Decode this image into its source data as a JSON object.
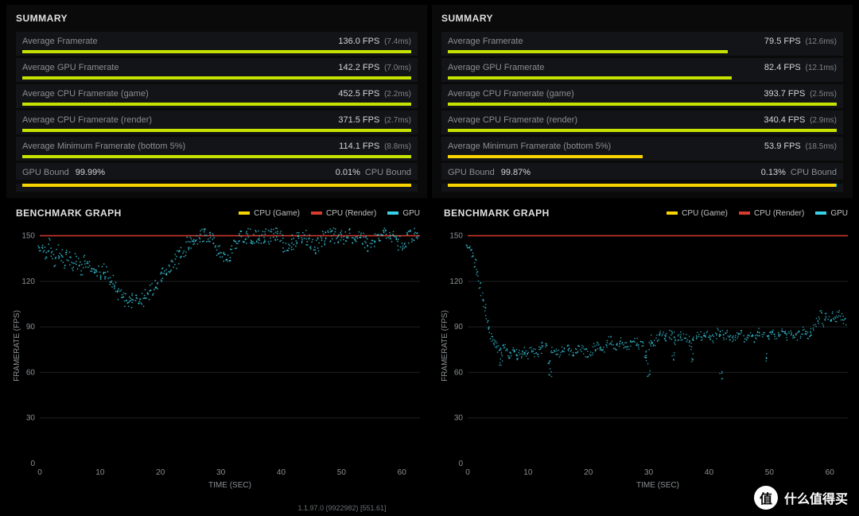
{
  "colors": {
    "background": "#000000",
    "row_bg": "#121417",
    "text_primary": "#d5d5d5",
    "text_muted": "#8a8f93",
    "bar_green": "#c6e200",
    "bar_yellow": "#f8d500",
    "bar_cyan": "#39d1e5",
    "bar_red": "#d63b2e",
    "grid": "#1c2024"
  },
  "section_titles": {
    "summary": "SUMMARY",
    "graph": "BENCHMARK GRAPH"
  },
  "legend": {
    "cpu_game": "CPU (Game)",
    "cpu_render": "CPU (Render)",
    "gpu": "GPU"
  },
  "axes": {
    "x_label": "TIME (SEC)",
    "y_label": "FRAMERATE (FPS)",
    "x_ticks": [
      0,
      10,
      20,
      30,
      40,
      50,
      60
    ],
    "y_ticks": [
      30,
      60,
      90,
      120,
      150
    ],
    "xlim": [
      0,
      63
    ],
    "ylim": [
      0,
      155
    ]
  },
  "left": {
    "metrics": [
      {
        "label": "Average Framerate",
        "value": "136.0 FPS",
        "sub": "(7.4ms)",
        "color": "#c6e200",
        "pct": 100
      },
      {
        "label": "Average GPU Framerate",
        "value": "142.2 FPS",
        "sub": "(7.0ms)",
        "color": "#c6e200",
        "pct": 100
      },
      {
        "label": "Average CPU Framerate (game)",
        "value": "452.5 FPS",
        "sub": "(2.2ms)",
        "color": "#c6e200",
        "pct": 100
      },
      {
        "label": "Average CPU Framerate (render)",
        "value": "371.5 FPS",
        "sub": "(2.7ms)",
        "color": "#c6e200",
        "pct": 100
      },
      {
        "label": "Average Minimum Framerate (bottom 5%)",
        "value": "114.1 FPS",
        "sub": "(8.8ms)",
        "color": "#c6e200",
        "pct": 100
      }
    ],
    "bound": {
      "left_label": "GPU Bound",
      "left_val": "99.99%",
      "right_val": "0.01%",
      "right_label": "CPU Bound",
      "gpu_color": "#f8d500",
      "gpu_pct": 99.99,
      "cpu_color": "#39d1e5",
      "cpu_pct": 0.01
    },
    "chart": {
      "cpu_game_color": "#f8d500",
      "cpu_render_color": "#d63b2e",
      "cpu_render_y": 150,
      "gpu_color": "#39d1e5",
      "gpu_series": [
        [
          0,
          145
        ],
        [
          0.5,
          142
        ],
        [
          1,
          138
        ],
        [
          1.5,
          144
        ],
        [
          2,
          139
        ],
        [
          2.5,
          134
        ],
        [
          3,
          140
        ],
        [
          3.5,
          136
        ],
        [
          4,
          132
        ],
        [
          4.5,
          137
        ],
        [
          5,
          135
        ],
        [
          5.5,
          130
        ],
        [
          6,
          134
        ],
        [
          6.5,
          131
        ],
        [
          7,
          128
        ],
        [
          7.5,
          133
        ],
        [
          8,
          129
        ],
        [
          8.5,
          126
        ],
        [
          9,
          130
        ],
        [
          9.5,
          127
        ],
        [
          10,
          124
        ],
        [
          10.5,
          128
        ],
        [
          11,
          126
        ],
        [
          11.5,
          122
        ],
        [
          12,
          120
        ],
        [
          12.5,
          117
        ],
        [
          13,
          113
        ],
        [
          13.5,
          110
        ],
        [
          14,
          108
        ],
        [
          14.5,
          106
        ],
        [
          15,
          105
        ],
        [
          15.5,
          107
        ],
        [
          16,
          106
        ],
        [
          16.5,
          109
        ],
        [
          17,
          108
        ],
        [
          17.5,
          112
        ],
        [
          18,
          110
        ],
        [
          18.5,
          114
        ],
        [
          19,
          116
        ],
        [
          19.5,
          119
        ],
        [
          20,
          121
        ],
        [
          20.5,
          124
        ],
        [
          21,
          126
        ],
        [
          21.5,
          128
        ],
        [
          22,
          131
        ],
        [
          22.5,
          133
        ],
        [
          23,
          136
        ],
        [
          23.5,
          139
        ],
        [
          24,
          141
        ],
        [
          24.5,
          144
        ],
        [
          25,
          146
        ],
        [
          25.5,
          148
        ],
        [
          26,
          149
        ],
        [
          26.5,
          150
        ],
        [
          27,
          150
        ],
        [
          27.5,
          150
        ],
        [
          28,
          148
        ],
        [
          28.5,
          149
        ],
        [
          29,
          144
        ],
        [
          29.5,
          142
        ],
        [
          30,
          139
        ],
        [
          30.5,
          136
        ],
        [
          31,
          135
        ],
        [
          31.5,
          137
        ],
        [
          32,
          143
        ],
        [
          32.5,
          146
        ],
        [
          33,
          148
        ],
        [
          33.5,
          150
        ],
        [
          34,
          150
        ],
        [
          34.5,
          150
        ],
        [
          35,
          150
        ],
        [
          35.5,
          149
        ],
        [
          36,
          150
        ],
        [
          36.5,
          148
        ],
        [
          37,
          150
        ],
        [
          37.5,
          150
        ],
        [
          38,
          149
        ],
        [
          38.5,
          150
        ],
        [
          39,
          150
        ],
        [
          39.5,
          150
        ],
        [
          40,
          148
        ],
        [
          40.5,
          144
        ],
        [
          41,
          141
        ],
        [
          41.5,
          143
        ],
        [
          42,
          146
        ],
        [
          42.5,
          148
        ],
        [
          43,
          150
        ],
        [
          43.5,
          150
        ],
        [
          44,
          149
        ],
        [
          44.5,
          146
        ],
        [
          45,
          144
        ],
        [
          45.5,
          142
        ],
        [
          46,
          144
        ],
        [
          46.5,
          146
        ],
        [
          47,
          148
        ],
        [
          47.5,
          149
        ],
        [
          48,
          150
        ],
        [
          48.5,
          150
        ],
        [
          49,
          150
        ],
        [
          49.5,
          150
        ],
        [
          50,
          150
        ],
        [
          50.5,
          149
        ],
        [
          51,
          150
        ],
        [
          51.5,
          150
        ],
        [
          52,
          150
        ],
        [
          52.5,
          150
        ],
        [
          53,
          149
        ],
        [
          53.5,
          148
        ],
        [
          54,
          145
        ],
        [
          54.5,
          143
        ],
        [
          55,
          145
        ],
        [
          55.5,
          147
        ],
        [
          56,
          149
        ],
        [
          56.5,
          150
        ],
        [
          57,
          150
        ],
        [
          57.5,
          150
        ],
        [
          58,
          150
        ],
        [
          58.5,
          150
        ],
        [
          59,
          148
        ],
        [
          59.5,
          145
        ],
        [
          60,
          143
        ],
        [
          60.5,
          146
        ],
        [
          61,
          148
        ],
        [
          61.5,
          150
        ],
        [
          62,
          150
        ],
        [
          62.5,
          150
        ]
      ],
      "point_jitter": 5,
      "point_radius": 0.9
    }
  },
  "right": {
    "metrics": [
      {
        "label": "Average Framerate",
        "value": "79.5 FPS",
        "sub": "(12.6ms)",
        "color": "#c6e200",
        "pct": 72
      },
      {
        "label": "Average GPU Framerate",
        "value": "82.4 FPS",
        "sub": "(12.1ms)",
        "color": "#c6e200",
        "pct": 73
      },
      {
        "label": "Average CPU Framerate (game)",
        "value": "393.7 FPS",
        "sub": "(2.5ms)",
        "color": "#c6e200",
        "pct": 100
      },
      {
        "label": "Average CPU Framerate (render)",
        "value": "340.4 FPS",
        "sub": "(2.9ms)",
        "color": "#c6e200",
        "pct": 100
      },
      {
        "label": "Average Minimum Framerate (bottom 5%)",
        "value": "53.9 FPS",
        "sub": "(18.5ms)",
        "color": "#f8d500",
        "pct": 50
      }
    ],
    "bound": {
      "left_label": "GPU Bound",
      "left_val": "99.87%",
      "right_val": "0.13%",
      "right_label": "CPU Bound",
      "gpu_color": "#f8d500",
      "gpu_pct": 99.87,
      "cpu_color": "#39d1e5",
      "cpu_pct": 0.13
    },
    "chart": {
      "cpu_game_color": "#f8d500",
      "cpu_render_color": "#d63b2e",
      "cpu_render_y": 150,
      "gpu_color": "#39d1e5",
      "gpu_series": [
        [
          0,
          145
        ],
        [
          0.4,
          142
        ],
        [
          0.8,
          138
        ],
        [
          1.2,
          132
        ],
        [
          1.6,
          126
        ],
        [
          2,
          118
        ],
        [
          2.4,
          110
        ],
        [
          2.8,
          102
        ],
        [
          3.2,
          95
        ],
        [
          3.6,
          88
        ],
        [
          4,
          83
        ],
        [
          4.4,
          80
        ],
        [
          4.8,
          78
        ],
        [
          5.2,
          75
        ],
        [
          5.5,
          67
        ],
        [
          5.6,
          73
        ],
        [
          6,
          76
        ],
        [
          6.4,
          74
        ],
        [
          6.8,
          72
        ],
        [
          7.2,
          73
        ],
        [
          7.6,
          75
        ],
        [
          8,
          73
        ],
        [
          8.4,
          71
        ],
        [
          8.8,
          72
        ],
        [
          9.2,
          74
        ],
        [
          9.6,
          73
        ],
        [
          10,
          72
        ],
        [
          10.5,
          74
        ],
        [
          11,
          73
        ],
        [
          11.5,
          72
        ],
        [
          12,
          74
        ],
        [
          12.5,
          77
        ],
        [
          13,
          76
        ],
        [
          13.5,
          68
        ],
        [
          13.7,
          60
        ],
        [
          14,
          75
        ],
        [
          14.5,
          73
        ],
        [
          15,
          72
        ],
        [
          15.5,
          74
        ],
        [
          16,
          76
        ],
        [
          16.5,
          75
        ],
        [
          17,
          73
        ],
        [
          17.5,
          72
        ],
        [
          18,
          74
        ],
        [
          18.5,
          76
        ],
        [
          19,
          75
        ],
        [
          19.5,
          73
        ],
        [
          20,
          72
        ],
        [
          20.5,
          74
        ],
        [
          21,
          76
        ],
        [
          21.5,
          78
        ],
        [
          22,
          77
        ],
        [
          22.5,
          76
        ],
        [
          23,
          79
        ],
        [
          23.5,
          81
        ],
        [
          24,
          78
        ],
        [
          24.5,
          76
        ],
        [
          25,
          78
        ],
        [
          25.5,
          80
        ],
        [
          26,
          79
        ],
        [
          26.5,
          77
        ],
        [
          27,
          79
        ],
        [
          27.5,
          81
        ],
        [
          28,
          80
        ],
        [
          28.5,
          78
        ],
        [
          29,
          80
        ],
        [
          29.5,
          72
        ],
        [
          29.7,
          68
        ],
        [
          30,
          60
        ],
        [
          30.3,
          78
        ],
        [
          30.5,
          82
        ],
        [
          31,
          80
        ],
        [
          31.5,
          83
        ],
        [
          32,
          86
        ],
        [
          32.5,
          85
        ],
        [
          33,
          83
        ],
        [
          33.5,
          85
        ],
        [
          34,
          84
        ],
        [
          34.1,
          70
        ],
        [
          34.5,
          80
        ],
        [
          35,
          82
        ],
        [
          35.5,
          84
        ],
        [
          36,
          83
        ],
        [
          36.5,
          81
        ],
        [
          37,
          78
        ],
        [
          37.2,
          70
        ],
        [
          37.5,
          82
        ],
        [
          38,
          85
        ],
        [
          38.5,
          84
        ],
        [
          39,
          83
        ],
        [
          39.5,
          85
        ],
        [
          40,
          84
        ],
        [
          40.5,
          82
        ],
        [
          41,
          84
        ],
        [
          41.5,
          86
        ],
        [
          42,
          85
        ],
        [
          42,
          58
        ],
        [
          42.5,
          83
        ],
        [
          43,
          85
        ],
        [
          43.5,
          84
        ],
        [
          44,
          82
        ],
        [
          44.5,
          84
        ],
        [
          45,
          86
        ],
        [
          45.5,
          85
        ],
        [
          46,
          83
        ],
        [
          46.5,
          85
        ],
        [
          47,
          84
        ],
        [
          47.5,
          82
        ],
        [
          48,
          84
        ],
        [
          48.5,
          86
        ],
        [
          49,
          85
        ],
        [
          49.5,
          70
        ],
        [
          49.7,
          83
        ],
        [
          50,
          86
        ],
        [
          50.5,
          85
        ],
        [
          51,
          83
        ],
        [
          51.5,
          85
        ],
        [
          52,
          87
        ],
        [
          52.5,
          86
        ],
        [
          53,
          84
        ],
        [
          53.5,
          86
        ],
        [
          54,
          85
        ],
        [
          54.5,
          83
        ],
        [
          55,
          85
        ],
        [
          55.5,
          87
        ],
        [
          56,
          86
        ],
        [
          56.5,
          84
        ],
        [
          57,
          86
        ],
        [
          57.5,
          90
        ],
        [
          58,
          95
        ],
        [
          58.5,
          98
        ],
        [
          59,
          92
        ],
        [
          59.5,
          96
        ],
        [
          60,
          94
        ],
        [
          60.5,
          97
        ],
        [
          61,
          95
        ],
        [
          61.5,
          98
        ],
        [
          62,
          96
        ],
        [
          62.5,
          94
        ]
      ],
      "point_jitter": 3,
      "point_radius": 0.8
    }
  },
  "build_string": "1.1.97.0 (9922982) [551.61]",
  "watermark": {
    "badge": "值",
    "text": "什么值得买"
  }
}
